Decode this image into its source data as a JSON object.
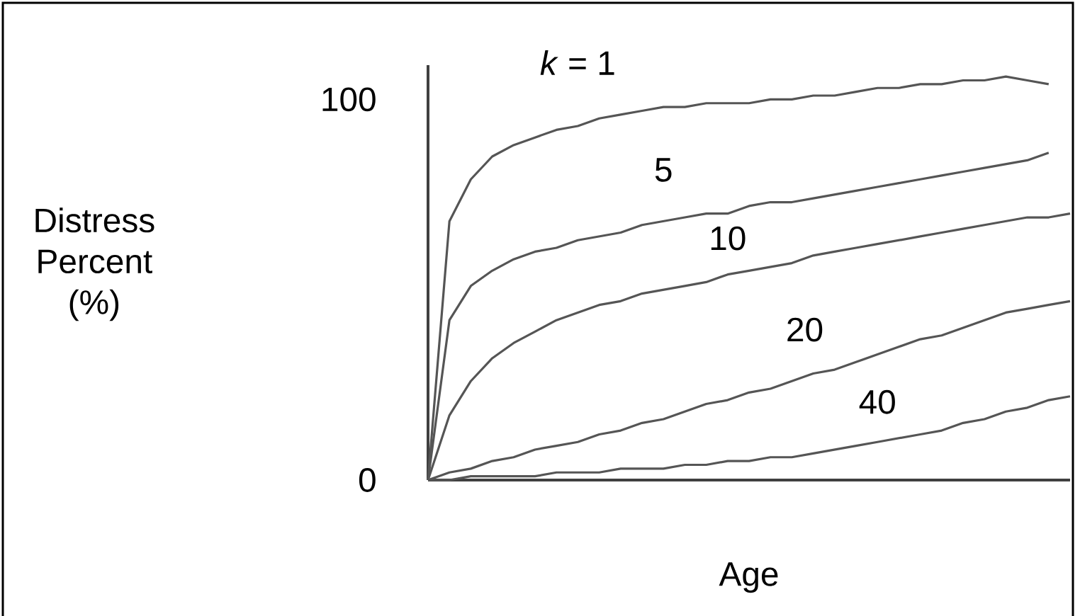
{
  "chart_data": {
    "type": "line",
    "xlabel": "Age",
    "ylabel": "Distress Percent (%)",
    "categories": [
      null,
      null,
      null,
      null,
      null,
      null,
      null,
      null,
      null,
      null,
      null,
      null,
      null,
      null,
      null,
      null,
      null,
      null,
      null,
      null,
      null,
      null,
      null,
      null,
      null,
      null,
      null,
      null,
      null,
      null,
      null
    ],
    "ylim": [
      0,
      109
    ],
    "yticks": [
      0,
      100
    ],
    "grid": false,
    "legend": false,
    "line_style": "solid",
    "series": [
      {
        "name": "*k* = 1",
        "color": "#555555",
        "values": [
          0,
          68,
          79,
          85,
          88,
          90,
          92,
          93,
          95,
          96,
          97,
          98,
          98,
          99,
          99,
          99,
          100,
          100,
          101,
          101,
          102,
          103,
          103,
          104,
          104,
          105,
          105,
          106,
          105,
          104,
          null
        ]
      },
      {
        "name": "5",
        "color": "#555555",
        "values": [
          0,
          42,
          51,
          55,
          58,
          60,
          61,
          63,
          64,
          65,
          67,
          68,
          69,
          70,
          70,
          72,
          73,
          73,
          74,
          75,
          76,
          77,
          78,
          79,
          80,
          81,
          82,
          83,
          84,
          86,
          null
        ]
      },
      {
        "name": "10",
        "color": "#555555",
        "values": [
          0,
          17,
          26,
          32,
          36,
          39,
          42,
          44,
          46,
          47,
          49,
          50,
          51,
          52,
          54,
          55,
          56,
          57,
          59,
          60,
          61,
          62,
          63,
          64,
          65,
          66,
          67,
          68,
          69,
          69,
          70
        ]
      },
      {
        "name": "20",
        "color": "#555555",
        "values": [
          0,
          2,
          3,
          5,
          6,
          8,
          9,
          10,
          12,
          13,
          15,
          16,
          18,
          20,
          21,
          23,
          24,
          26,
          28,
          29,
          31,
          33,
          35,
          37,
          38,
          40,
          42,
          44,
          45,
          46,
          47
        ]
      },
      {
        "name": "40",
        "color": "#555555",
        "values": [
          0,
          0,
          1,
          1,
          1,
          1,
          2,
          2,
          2,
          3,
          3,
          3,
          4,
          4,
          5,
          5,
          6,
          6,
          7,
          8,
          9,
          10,
          11,
          12,
          13,
          15,
          16,
          18,
          19,
          21,
          22
        ]
      }
    ]
  }
}
